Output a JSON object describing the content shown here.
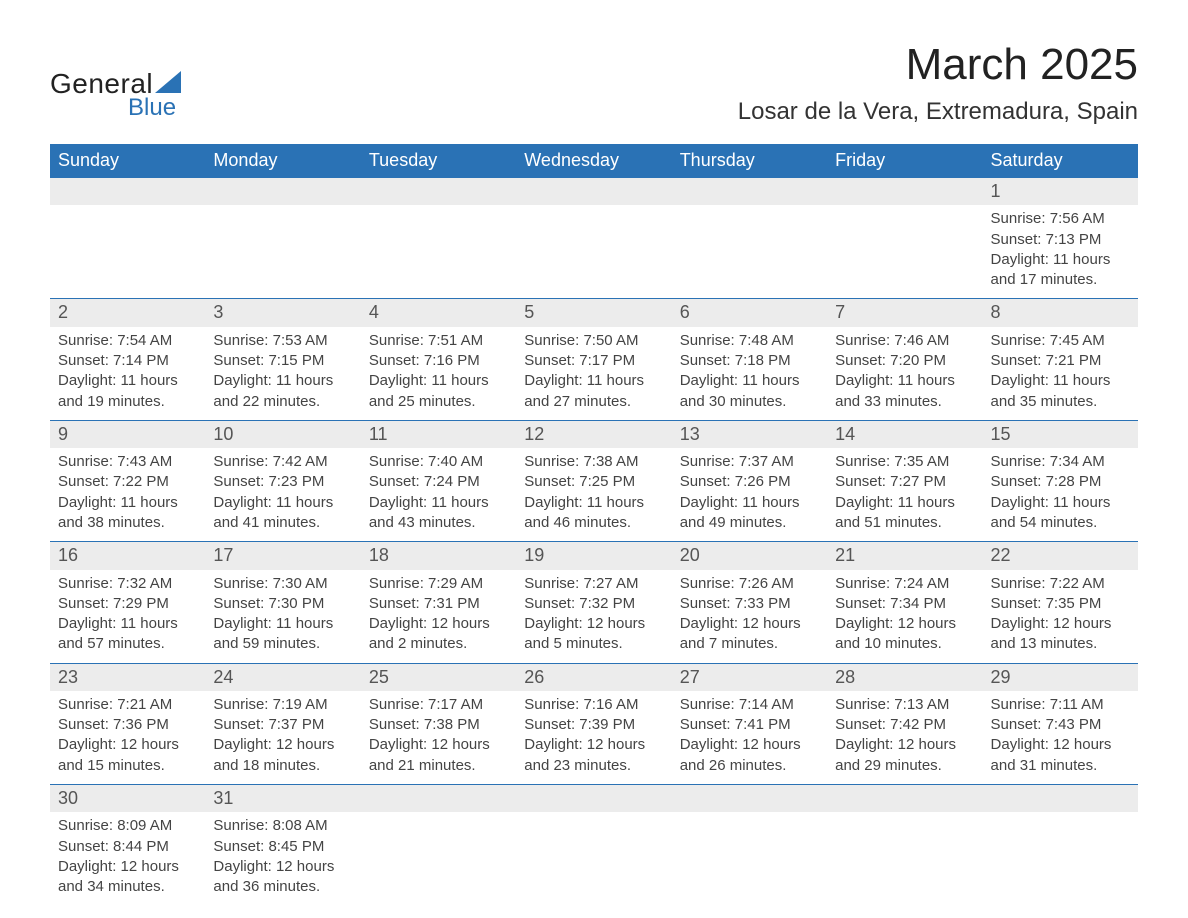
{
  "logo": {
    "text_general": "General",
    "text_blue": "Blue",
    "sail_color": "#2a72b5"
  },
  "title": {
    "month": "March 2025",
    "location": "Losar de la Vera, Extremadura, Spain"
  },
  "colors": {
    "header_bg": "#2a72b5",
    "header_text": "#ffffff",
    "daynum_bg": "#ececec",
    "border": "#2a72b5",
    "body_text": "#333333",
    "title_text": "#222222"
  },
  "weekdays": [
    "Sunday",
    "Monday",
    "Tuesday",
    "Wednesday",
    "Thursday",
    "Friday",
    "Saturday"
  ],
  "weeks": [
    [
      {
        "num": "",
        "sunrise": "",
        "sunset": "",
        "daylight": ""
      },
      {
        "num": "",
        "sunrise": "",
        "sunset": "",
        "daylight": ""
      },
      {
        "num": "",
        "sunrise": "",
        "sunset": "",
        "daylight": ""
      },
      {
        "num": "",
        "sunrise": "",
        "sunset": "",
        "daylight": ""
      },
      {
        "num": "",
        "sunrise": "",
        "sunset": "",
        "daylight": ""
      },
      {
        "num": "",
        "sunrise": "",
        "sunset": "",
        "daylight": ""
      },
      {
        "num": "1",
        "sunrise": "Sunrise: 7:56 AM",
        "sunset": "Sunset: 7:13 PM",
        "daylight": "Daylight: 11 hours and 17 minutes."
      }
    ],
    [
      {
        "num": "2",
        "sunrise": "Sunrise: 7:54 AM",
        "sunset": "Sunset: 7:14 PM",
        "daylight": "Daylight: 11 hours and 19 minutes."
      },
      {
        "num": "3",
        "sunrise": "Sunrise: 7:53 AM",
        "sunset": "Sunset: 7:15 PM",
        "daylight": "Daylight: 11 hours and 22 minutes."
      },
      {
        "num": "4",
        "sunrise": "Sunrise: 7:51 AM",
        "sunset": "Sunset: 7:16 PM",
        "daylight": "Daylight: 11 hours and 25 minutes."
      },
      {
        "num": "5",
        "sunrise": "Sunrise: 7:50 AM",
        "sunset": "Sunset: 7:17 PM",
        "daylight": "Daylight: 11 hours and 27 minutes."
      },
      {
        "num": "6",
        "sunrise": "Sunrise: 7:48 AM",
        "sunset": "Sunset: 7:18 PM",
        "daylight": "Daylight: 11 hours and 30 minutes."
      },
      {
        "num": "7",
        "sunrise": "Sunrise: 7:46 AM",
        "sunset": "Sunset: 7:20 PM",
        "daylight": "Daylight: 11 hours and 33 minutes."
      },
      {
        "num": "8",
        "sunrise": "Sunrise: 7:45 AM",
        "sunset": "Sunset: 7:21 PM",
        "daylight": "Daylight: 11 hours and 35 minutes."
      }
    ],
    [
      {
        "num": "9",
        "sunrise": "Sunrise: 7:43 AM",
        "sunset": "Sunset: 7:22 PM",
        "daylight": "Daylight: 11 hours and 38 minutes."
      },
      {
        "num": "10",
        "sunrise": "Sunrise: 7:42 AM",
        "sunset": "Sunset: 7:23 PM",
        "daylight": "Daylight: 11 hours and 41 minutes."
      },
      {
        "num": "11",
        "sunrise": "Sunrise: 7:40 AM",
        "sunset": "Sunset: 7:24 PM",
        "daylight": "Daylight: 11 hours and 43 minutes."
      },
      {
        "num": "12",
        "sunrise": "Sunrise: 7:38 AM",
        "sunset": "Sunset: 7:25 PM",
        "daylight": "Daylight: 11 hours and 46 minutes."
      },
      {
        "num": "13",
        "sunrise": "Sunrise: 7:37 AM",
        "sunset": "Sunset: 7:26 PM",
        "daylight": "Daylight: 11 hours and 49 minutes."
      },
      {
        "num": "14",
        "sunrise": "Sunrise: 7:35 AM",
        "sunset": "Sunset: 7:27 PM",
        "daylight": "Daylight: 11 hours and 51 minutes."
      },
      {
        "num": "15",
        "sunrise": "Sunrise: 7:34 AM",
        "sunset": "Sunset: 7:28 PM",
        "daylight": "Daylight: 11 hours and 54 minutes."
      }
    ],
    [
      {
        "num": "16",
        "sunrise": "Sunrise: 7:32 AM",
        "sunset": "Sunset: 7:29 PM",
        "daylight": "Daylight: 11 hours and 57 minutes."
      },
      {
        "num": "17",
        "sunrise": "Sunrise: 7:30 AM",
        "sunset": "Sunset: 7:30 PM",
        "daylight": "Daylight: 11 hours and 59 minutes."
      },
      {
        "num": "18",
        "sunrise": "Sunrise: 7:29 AM",
        "sunset": "Sunset: 7:31 PM",
        "daylight": "Daylight: 12 hours and 2 minutes."
      },
      {
        "num": "19",
        "sunrise": "Sunrise: 7:27 AM",
        "sunset": "Sunset: 7:32 PM",
        "daylight": "Daylight: 12 hours and 5 minutes."
      },
      {
        "num": "20",
        "sunrise": "Sunrise: 7:26 AM",
        "sunset": "Sunset: 7:33 PM",
        "daylight": "Daylight: 12 hours and 7 minutes."
      },
      {
        "num": "21",
        "sunrise": "Sunrise: 7:24 AM",
        "sunset": "Sunset: 7:34 PM",
        "daylight": "Daylight: 12 hours and 10 minutes."
      },
      {
        "num": "22",
        "sunrise": "Sunrise: 7:22 AM",
        "sunset": "Sunset: 7:35 PM",
        "daylight": "Daylight: 12 hours and 13 minutes."
      }
    ],
    [
      {
        "num": "23",
        "sunrise": "Sunrise: 7:21 AM",
        "sunset": "Sunset: 7:36 PM",
        "daylight": "Daylight: 12 hours and 15 minutes."
      },
      {
        "num": "24",
        "sunrise": "Sunrise: 7:19 AM",
        "sunset": "Sunset: 7:37 PM",
        "daylight": "Daylight: 12 hours and 18 minutes."
      },
      {
        "num": "25",
        "sunrise": "Sunrise: 7:17 AM",
        "sunset": "Sunset: 7:38 PM",
        "daylight": "Daylight: 12 hours and 21 minutes."
      },
      {
        "num": "26",
        "sunrise": "Sunrise: 7:16 AM",
        "sunset": "Sunset: 7:39 PM",
        "daylight": "Daylight: 12 hours and 23 minutes."
      },
      {
        "num": "27",
        "sunrise": "Sunrise: 7:14 AM",
        "sunset": "Sunset: 7:41 PM",
        "daylight": "Daylight: 12 hours and 26 minutes."
      },
      {
        "num": "28",
        "sunrise": "Sunrise: 7:13 AM",
        "sunset": "Sunset: 7:42 PM",
        "daylight": "Daylight: 12 hours and 29 minutes."
      },
      {
        "num": "29",
        "sunrise": "Sunrise: 7:11 AM",
        "sunset": "Sunset: 7:43 PM",
        "daylight": "Daylight: 12 hours and 31 minutes."
      }
    ],
    [
      {
        "num": "30",
        "sunrise": "Sunrise: 8:09 AM",
        "sunset": "Sunset: 8:44 PM",
        "daylight": "Daylight: 12 hours and 34 minutes."
      },
      {
        "num": "31",
        "sunrise": "Sunrise: 8:08 AM",
        "sunset": "Sunset: 8:45 PM",
        "daylight": "Daylight: 12 hours and 36 minutes."
      },
      {
        "num": "",
        "sunrise": "",
        "sunset": "",
        "daylight": ""
      },
      {
        "num": "",
        "sunrise": "",
        "sunset": "",
        "daylight": ""
      },
      {
        "num": "",
        "sunrise": "",
        "sunset": "",
        "daylight": ""
      },
      {
        "num": "",
        "sunrise": "",
        "sunset": "",
        "daylight": ""
      },
      {
        "num": "",
        "sunrise": "",
        "sunset": "",
        "daylight": ""
      }
    ]
  ]
}
